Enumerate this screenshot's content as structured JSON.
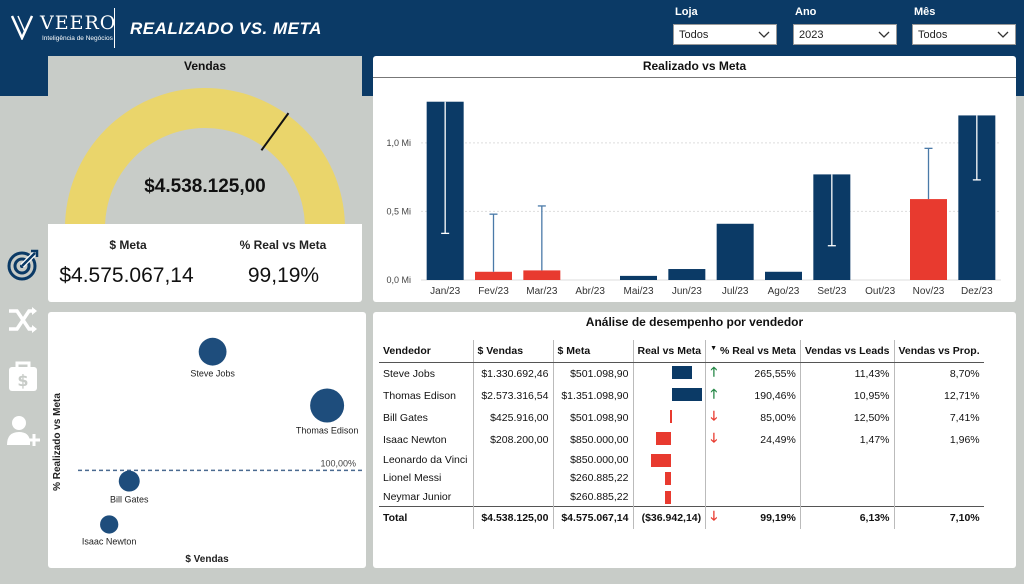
{
  "header": {
    "logo_text": "VEERO",
    "logo_sub": "Inteligência de Negócios",
    "title": "REALIZADO VS. META"
  },
  "filters": [
    {
      "label": "Loja",
      "value": "Todos"
    },
    {
      "label": "Ano",
      "value": "2023"
    },
    {
      "label": "Mês",
      "value": "Todos"
    }
  ],
  "sidebar": {
    "icons": [
      "target-icon",
      "shuffle-icon",
      "money-bag-icon",
      "add-user-icon"
    ]
  },
  "vendas_card": {
    "title": "Vendas",
    "gauge_value": "$4.538.125,00",
    "gauge_fraction": 0.9919,
    "meta_label": "$ Meta",
    "meta_value": "$4.575.067,14",
    "real_label": "% Real vs Meta",
    "real_value": "99,19%"
  },
  "scatter_card": {
    "ylabel": "% Realizado vs Meta",
    "xlabel": "$ Vendas",
    "ref_label": "100,00%"
  },
  "chart_data": {
    "type": "bar",
    "title": "Realizado vs Meta",
    "categories": [
      "Jan/23",
      "Fev/23",
      "Mar/23",
      "Abr/23",
      "Mai/23",
      "Jun/23",
      "Jul/23",
      "Ago/23",
      "Set/23",
      "Out/23",
      "Nov/23",
      "Dez/23"
    ],
    "values": [
      1.3,
      0.06,
      0.07,
      0,
      0.03,
      0.08,
      0.41,
      0.06,
      0.77,
      0,
      0.59,
      1.2
    ],
    "meta": [
      0.34,
      0.48,
      0.54,
      null,
      null,
      null,
      null,
      null,
      0.25,
      null,
      0.96,
      0.73
    ],
    "bar_colors": [
      "#0b3a66",
      "#e83a2f",
      "#e83a2f",
      "#0b3a66",
      "#0b3a66",
      "#0b3a66",
      "#0b3a66",
      "#0b3a66",
      "#0b3a66",
      "#0b3a66",
      "#e83a2f",
      "#0b3a66"
    ],
    "yticks": [
      {
        "v": 0,
        "label": "0,0 Mi"
      },
      {
        "v": 0.5,
        "label": "0,5 Mi"
      },
      {
        "v": 1.0,
        "label": "1,0 Mi"
      }
    ],
    "ylim": [
      0,
      1.4
    ]
  },
  "scatter_data": {
    "type": "scatter",
    "points": [
      {
        "name": "Steve Jobs",
        "vendas": 1330692.46,
        "pct": 265.55,
        "size": 1330692.46
      },
      {
        "name": "Thomas Edison",
        "vendas": 2573316.54,
        "pct": 190.46,
        "size": 2573316.54
      },
      {
        "name": "Bill Gates",
        "vendas": 425916.0,
        "pct": 85.0,
        "size": 425916.0
      },
      {
        "name": "Isaac Newton",
        "vendas": 208200.0,
        "pct": 24.49,
        "size": 208200.0
      }
    ],
    "ref_pct": 100
  },
  "performance_table": {
    "title": "Análise de desempenho por vendedor",
    "columns": [
      "Vendedor",
      "$ Vendas",
      "$ Meta",
      "Real vs Meta",
      "% Real vs Meta",
      "Vendas vs Leads",
      "Vendas vs Prop."
    ],
    "rows": [
      {
        "vendedor": "Steve Jobs",
        "vendas": "$1.330.692,46",
        "meta": "$501.098,90",
        "real_vs_meta": 829593.56,
        "arrow": "up",
        "pct": "265,55%",
        "leads": "11,43%",
        "prop": "8,70%"
      },
      {
        "vendedor": "Thomas Edison",
        "vendas": "$2.573.316,54",
        "meta": "$1.351.098,90",
        "real_vs_meta": 1222217.64,
        "arrow": "up",
        "pct": "190,46%",
        "leads": "10,95%",
        "prop": "12,71%"
      },
      {
        "vendedor": "Bill Gates",
        "vendas": "$425.916,00",
        "meta": "$501.098,90",
        "real_vs_meta": -75182.9,
        "arrow": "down",
        "pct": "85,00%",
        "leads": "12,50%",
        "prop": "7,41%"
      },
      {
        "vendedor": "Isaac Newton",
        "vendas": "$208.200,00",
        "meta": "$850.000,00",
        "real_vs_meta": -641800.0,
        "arrow": "down",
        "pct": "24,49%",
        "leads": "1,47%",
        "prop": "1,96%"
      },
      {
        "vendedor": "Leonardo da Vinci",
        "vendas": "",
        "meta": "$850.000,00",
        "real_vs_meta": -850000.0,
        "arrow": "",
        "pct": "",
        "leads": "",
        "prop": ""
      },
      {
        "vendedor": "Lionel Messi",
        "vendas": "",
        "meta": "$260.885,22",
        "real_vs_meta": -260885.22,
        "arrow": "",
        "pct": "",
        "leads": "",
        "prop": ""
      },
      {
        "vendedor": "Neymar Junior",
        "vendas": "",
        "meta": "$260.885,22",
        "real_vs_meta": -260885.22,
        "arrow": "",
        "pct": "",
        "leads": "",
        "prop": ""
      }
    ],
    "total": {
      "vendedor": "Total",
      "vendas": "$4.538.125,00",
      "meta": "$4.575.067,14",
      "real_vs_meta": "($36.942,14)",
      "arrow": "down",
      "pct": "99,19%",
      "leads": "6,13%",
      "prop": "7,10%"
    }
  }
}
